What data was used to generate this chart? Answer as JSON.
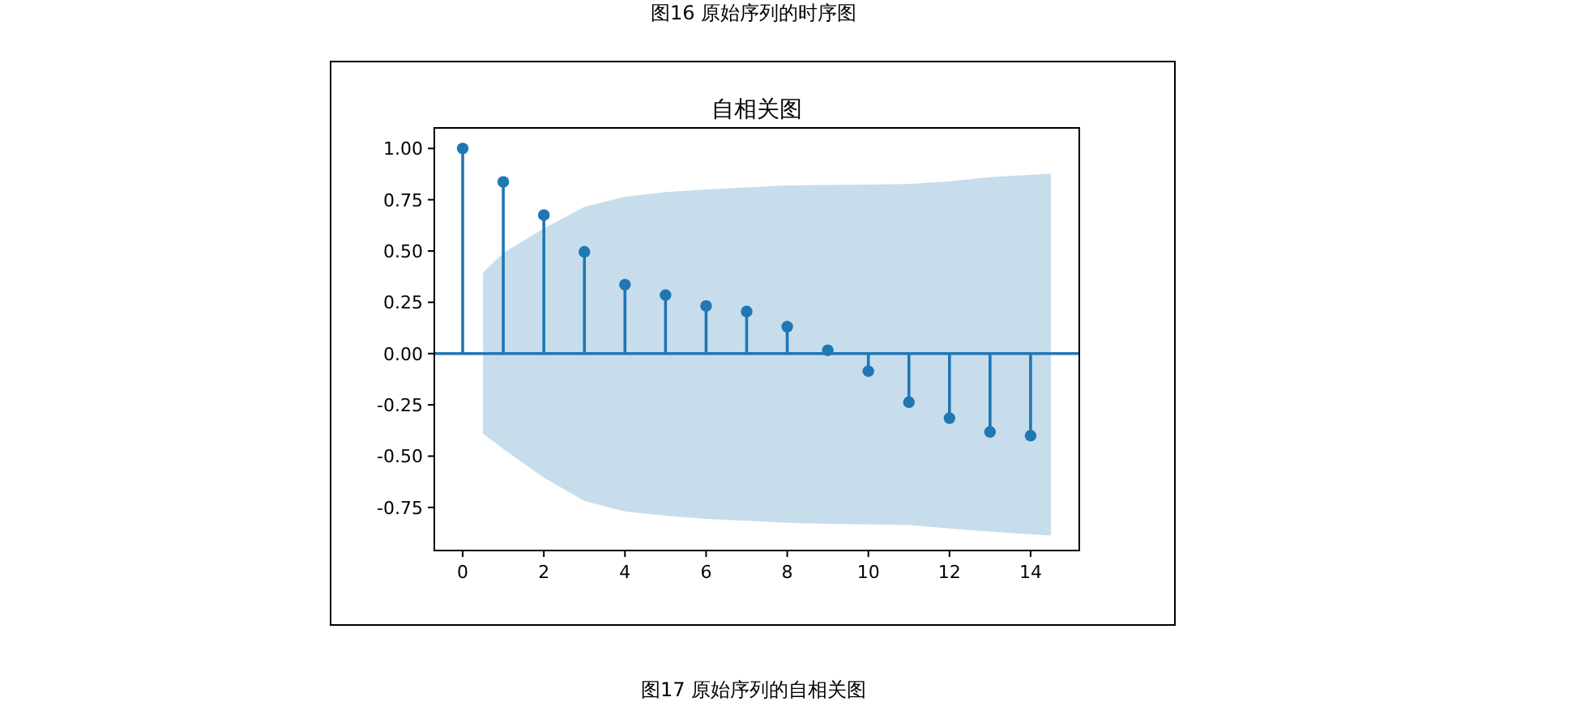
{
  "chart_data": {
    "type": "lollipop",
    "title": "自相关图",
    "annotations": [
      "图16 原始序列的时序图",
      "图17 原始序列的自相关图"
    ],
    "series": [
      {
        "color": "#1f77b4",
        "x": [
          0,
          0.5,
          1,
          2,
          3,
          4,
          5,
          6,
          7,
          8,
          9,
          10,
          11,
          12,
          13,
          14,
          14.5
        ],
        "values": [
          1.0,
          null,
          0.837,
          0.675,
          0.496,
          0.336,
          0.285,
          0.232,
          0.205,
          0.131,
          0.016,
          -0.086,
          -0.237,
          -0.315,
          -0.382,
          -0.4,
          null
        ],
        "lower": [
          null,
          -0.39,
          -0.465,
          -0.605,
          -0.718,
          -0.77,
          -0.79,
          -0.806,
          -0.815,
          -0.825,
          -0.83,
          -0.833,
          -0.836,
          -0.852,
          -0.868,
          -0.881,
          -0.887
        ],
        "upper": [
          null,
          0.395,
          0.49,
          0.61,
          0.715,
          0.765,
          0.787,
          0.8,
          0.81,
          0.82,
          0.822,
          0.824,
          0.827,
          0.84,
          0.86,
          0.871,
          0.877
        ]
      }
    ],
    "xlim": [
      -0.7,
      15.2
    ],
    "ylim": [
      -0.96,
      1.1
    ],
    "xticks": [
      0,
      2,
      4,
      6,
      8,
      10,
      12,
      14
    ],
    "yticks": [
      {
        "value": -0.75,
        "label": "-0.75"
      },
      {
        "value": -0.5,
        "label": "-0.50"
      },
      {
        "value": -0.25,
        "label": "-0.25"
      },
      {
        "value": 0,
        "label": "0.00"
      },
      {
        "value": 0.25,
        "label": "0.25"
      },
      {
        "value": 0.5,
        "label": "0.50"
      },
      {
        "value": 0.75,
        "label": "0.75"
      },
      {
        "value": 1.0,
        "label": "1.00"
      }
    ],
    "ref_lines": [
      {
        "axis": "y",
        "value": 0,
        "color": "#1f77b4"
      }
    ],
    "marker": "circle",
    "grid": false
  }
}
